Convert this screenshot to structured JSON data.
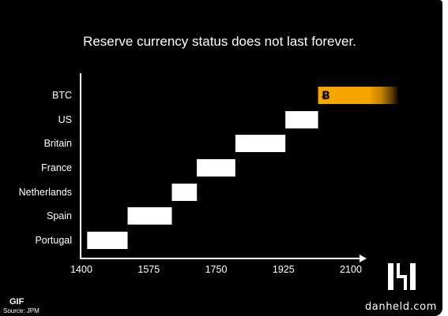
{
  "chart_data": {
    "type": "bar",
    "orientation": "horizontal-range",
    "title": "Reserve currency status does not last forever.",
    "categories": [
      "Portugal",
      "Spain",
      "Netherlands",
      "France",
      "Britain",
      "US",
      "BTC"
    ],
    "ranges": [
      {
        "name": "Portugal",
        "start": 1415,
        "end": 1520
      },
      {
        "name": "Spain",
        "start": 1520,
        "end": 1635
      },
      {
        "name": "Netherlands",
        "start": 1635,
        "end": 1700
      },
      {
        "name": "France",
        "start": 1700,
        "end": 1800
      },
      {
        "name": "Britain",
        "start": 1800,
        "end": 1930
      },
      {
        "name": "US",
        "start": 1930,
        "end": 2015
      },
      {
        "name": "BTC",
        "start": 2015,
        "end": 2225
      }
    ],
    "xticks": [
      "1400",
      "1575",
      "1750",
      "1925",
      "2100"
    ],
    "xtick_values": [
      1400,
      1575,
      1750,
      1925,
      2100
    ],
    "xlim": [
      1400,
      2130
    ],
    "grid": false,
    "bar_color": "#ffffff",
    "btc_color": "#f7a600",
    "background": "#000000"
  },
  "branding": {
    "logo_icon": "h-logo-icon",
    "site": "danheld.com"
  },
  "footer": {
    "gif_label": "GIF",
    "source": "Source: JPM"
  },
  "btc_icon": "bitcoin-icon"
}
